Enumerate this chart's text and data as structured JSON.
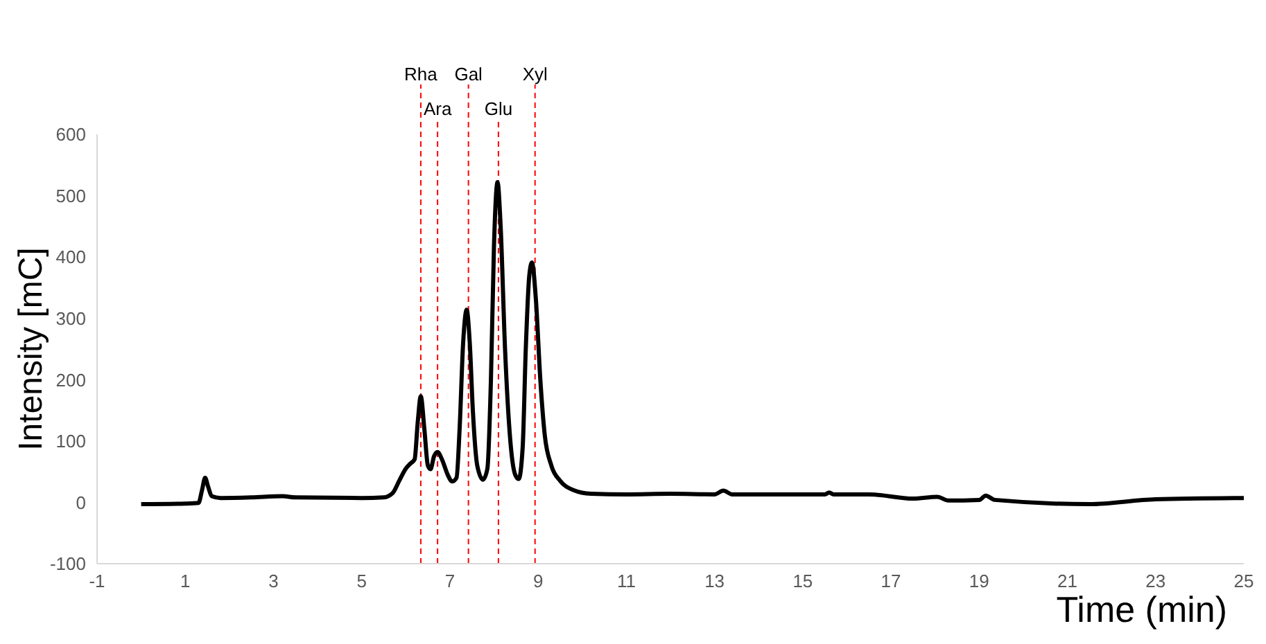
{
  "chart_data": {
    "type": "line",
    "xlabel": "Time (min)",
    "ylabel": "Intensity [mC]",
    "x": [
      0,
      1,
      1.3,
      1.38,
      1.45,
      1.52,
      1.6,
      1.8,
      2.5,
      3.2,
      3.5,
      5,
      5.5,
      5.7,
      5.85,
      6.0,
      6.1,
      6.2,
      6.27,
      6.34,
      6.42,
      6.5,
      6.56,
      6.64,
      6.72,
      6.82,
      6.95,
      7.05,
      7.15,
      7.22,
      7.3,
      7.38,
      7.45,
      7.52,
      7.62,
      7.75,
      7.85,
      7.93,
      8.0,
      8.08,
      8.15,
      8.25,
      8.37,
      8.48,
      8.56,
      8.65,
      8.72,
      8.8,
      8.86,
      8.95,
      9.05,
      9.15,
      9.3,
      9.5,
      9.8,
      10.2,
      11,
      12,
      13,
      13.2,
      13.4,
      15.5,
      15.6,
      15.7,
      16.5,
      17.5,
      18.05,
      18.3,
      19,
      19.15,
      19.35,
      21.5,
      23,
      25
    ],
    "series": [
      {
        "color": "#000000",
        "values": [
          -3,
          -2,
          -1,
          20,
          40,
          25,
          10,
          7,
          8,
          10,
          8,
          7,
          8,
          15,
          35,
          55,
          63,
          70,
          130,
          173,
          120,
          60,
          54,
          75,
          82,
          70,
          45,
          34,
          40,
          120,
          260,
          314,
          260,
          150,
          60,
          37,
          55,
          200,
          420,
          522,
          450,
          250,
          100,
          45,
          38,
          90,
          250,
          370,
          391,
          330,
          200,
          110,
          60,
          35,
          20,
          14,
          13,
          14,
          13,
          19,
          13,
          13,
          16,
          13,
          13,
          6,
          9,
          3,
          4,
          11,
          4,
          -3,
          5,
          7
        ]
      }
    ],
    "xlim": [
      -1,
      25
    ],
    "xticks": [
      -1,
      1,
      3,
      5,
      7,
      9,
      11,
      13,
      15,
      17,
      19,
      21,
      23,
      25
    ],
    "ylim": [
      -100,
      600
    ],
    "yticks": [
      -100,
      0,
      100,
      200,
      300,
      400,
      500,
      600
    ],
    "ref_lines": [
      {
        "axis": "x",
        "value": 6.34,
        "label": "Rha",
        "color": "#ff0000",
        "line_style": "dashed"
      },
      {
        "axis": "x",
        "value": 6.72,
        "label": "Ara",
        "color": "#ff0000",
        "line_style": "dashed"
      },
      {
        "axis": "x",
        "value": 7.42,
        "label": "Gal",
        "color": "#ff0000",
        "line_style": "dashed"
      },
      {
        "axis": "x",
        "value": 8.1,
        "label": "Glu",
        "color": "#ff0000",
        "line_style": "dashed"
      },
      {
        "axis": "x",
        "value": 8.93,
        "label": "Xyl",
        "color": "#ff0000",
        "line_style": "dashed"
      }
    ]
  }
}
